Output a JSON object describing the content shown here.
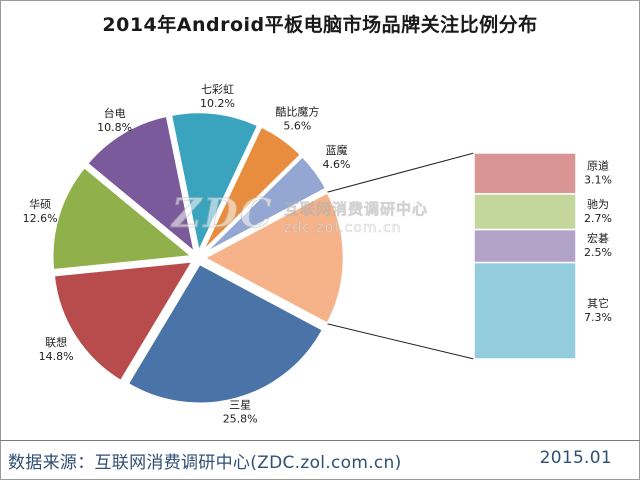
{
  "title": "2014年Android平板电脑市场品牌关注比例分布",
  "footer": {
    "source": "数据来源：互联网消费调研中心(ZDC.zol.com.cn)",
    "date": "2015.01"
  },
  "watermark": {
    "logo": "ZDC",
    "text_cn": "互联网消费调研中心",
    "url": "zdc.zol.com.cn"
  },
  "colors": {
    "三星": "#4a74a8",
    "联想": "#b84b4b",
    "华硕": "#8fb04a",
    "台电": "#7a5a9a",
    "七彩虹": "#3aa3bd",
    "酷比魔方": "#e88d3d",
    "蓝魔": "#93a7d2",
    "其它合计": "#f6b38a",
    "原道": "#d99594",
    "驰为": "#c3d69b",
    "宏碁": "#b2a2c7",
    "其它": "#93cddd"
  },
  "chart_data": {
    "type": "pie",
    "title": "2014年Android平板电脑市场品牌关注比例分布",
    "unit": "%",
    "slices": [
      {
        "name": "三星",
        "value": 25.8,
        "label": "25.8%"
      },
      {
        "name": "联想",
        "value": 14.8,
        "label": "14.8%"
      },
      {
        "name": "华硕",
        "value": 12.6,
        "label": "12.6%"
      },
      {
        "name": "台电",
        "value": 10.8,
        "label": "10.8%"
      },
      {
        "name": "七彩虹",
        "value": 10.2,
        "label": "10.2%"
      },
      {
        "name": "酷比魔方",
        "value": 5.6,
        "label": "5.6%"
      },
      {
        "name": "蓝魔",
        "value": 4.6,
        "label": "4.6%"
      }
    ],
    "breakout": {
      "type": "stacked-bar",
      "total": 15.6,
      "segments": [
        {
          "name": "原道",
          "value": 3.1,
          "label": "3.1%"
        },
        {
          "name": "驰为",
          "value": 2.7,
          "label": "2.7%"
        },
        {
          "name": "宏碁",
          "value": 2.5,
          "label": "2.5%"
        },
        {
          "name": "其它",
          "value": 7.3,
          "label": "7.3%"
        }
      ]
    }
  }
}
